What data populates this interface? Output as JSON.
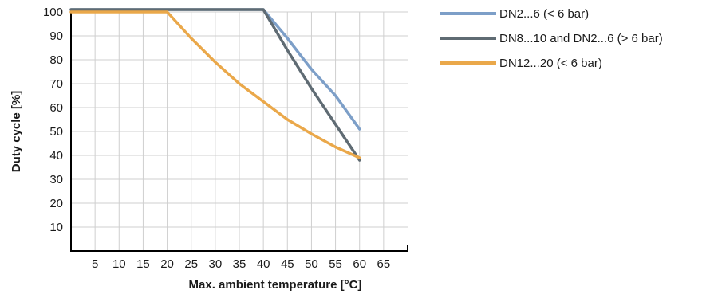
{
  "chart_data": {
    "type": "line",
    "title": "",
    "xlabel": "Max. ambient temperature [°C]",
    "ylabel": "Duty cycle  [%]",
    "xlim": [
      0,
      70
    ],
    "ylim": [
      0,
      100
    ],
    "x_ticks": [
      5,
      10,
      15,
      20,
      25,
      30,
      35,
      40,
      45,
      50,
      55,
      60,
      65
    ],
    "y_ticks": [
      10,
      20,
      30,
      40,
      50,
      60,
      70,
      80,
      90,
      100
    ],
    "grid": true,
    "legend_position": "top-right, outside plot",
    "series": [
      {
        "name": "DN2...6 (< 6 bar)",
        "color": "#7d9fc8",
        "x": [
          0,
          40,
          45,
          50,
          55,
          60
        ],
        "y": [
          101,
          101,
          89,
          76,
          65,
          51
        ]
      },
      {
        "name": "DN8...10 and DN2...6 (> 6 bar)",
        "color": "#5f6b73",
        "x": [
          0,
          40,
          45,
          50,
          55,
          60
        ],
        "y": [
          101,
          101,
          84,
          68,
          53,
          38
        ]
      },
      {
        "name": "DN12...20 (< 6 bar)",
        "color": "#eaa84a",
        "x": [
          0,
          20,
          25,
          30,
          35,
          40,
          45,
          50,
          55,
          60
        ],
        "y": [
          100,
          100,
          89,
          79,
          70,
          62.5,
          55,
          49,
          43.5,
          39
        ]
      }
    ]
  }
}
